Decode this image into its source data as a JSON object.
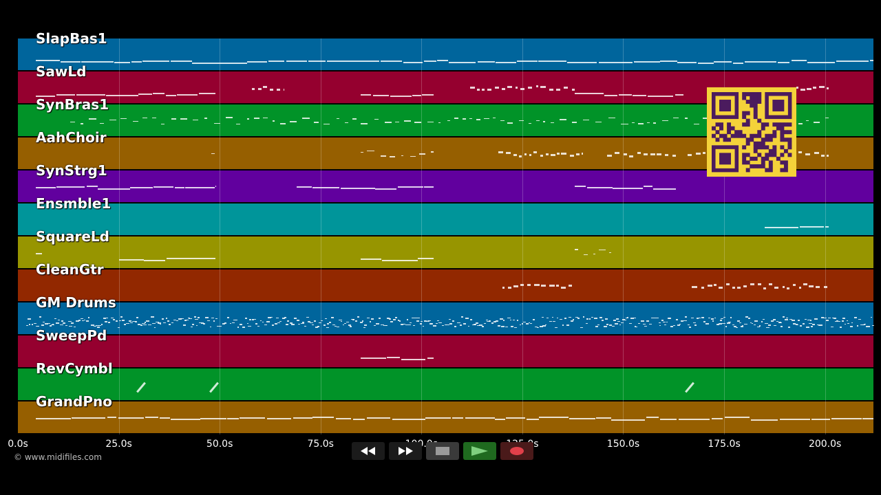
{
  "tracks": [
    {
      "name": "SlapBas1",
      "color": "#00659c"
    },
    {
      "name": "SawLd",
      "color": "#95002f"
    },
    {
      "name": "SynBras1",
      "color": "#019328"
    },
    {
      "name": "AahChoir",
      "color": "#965f00"
    },
    {
      "name": "SynStrg1",
      "color": "#61009e"
    },
    {
      "name": "Ensmble1",
      "color": "#00959a"
    },
    {
      "name": "SquareLd",
      "color": "#979500"
    },
    {
      "name": "CleanGtr",
      "color": "#922800"
    },
    {
      "name": "GM Drums",
      "color": "#00659c"
    },
    {
      "name": "SweepPd",
      "color": "#95002f"
    },
    {
      "name": "RevCymbl",
      "color": "#019328"
    },
    {
      "name": "GrandPno",
      "color": "#965f00"
    }
  ],
  "axis": {
    "ticks": [
      "0.0s",
      "25.0s",
      "50.0s",
      "75.0s",
      "100.0s",
      "125.0s",
      "150.0s",
      "175.0s",
      "200.0s"
    ],
    "range_seconds": [
      0,
      212
    ]
  },
  "copyright": "© www.midifiles.com",
  "transport": {
    "rewind_icon": "rewind-icon",
    "fast_forward_icon": "fast-forward-icon",
    "stop_icon": "stop-icon",
    "play_icon": "play-icon",
    "record_icon": "record-icon"
  },
  "note_segments": [
    {
      "track": 0,
      "start": 4.5,
      "end": 212,
      "density": "continuous"
    },
    {
      "track": 1,
      "start": 4.5,
      "end": 49,
      "density": "continuous"
    },
    {
      "track": 1,
      "start": 58,
      "end": 66,
      "density": "burst"
    },
    {
      "track": 1,
      "start": 85,
      "end": 103,
      "density": "continuous"
    },
    {
      "track": 1,
      "start": 112,
      "end": 138,
      "density": "burst"
    },
    {
      "track": 1,
      "start": 138,
      "end": 165,
      "density": "continuous"
    },
    {
      "track": 1,
      "start": 190,
      "end": 201,
      "density": "burst"
    },
    {
      "track": 2,
      "start": 13,
      "end": 201,
      "density": "sparse"
    },
    {
      "track": 3,
      "start": 48,
      "end": 49,
      "density": "sparse"
    },
    {
      "track": 3,
      "start": 85,
      "end": 103,
      "density": "sparse"
    },
    {
      "track": 3,
      "start": 119,
      "end": 140,
      "density": "burst"
    },
    {
      "track": 3,
      "start": 146,
      "end": 163,
      "density": "burst"
    },
    {
      "track": 3,
      "start": 166,
      "end": 201,
      "density": "burst"
    },
    {
      "track": 4,
      "start": 4.5,
      "end": 49,
      "density": "continuous"
    },
    {
      "track": 4,
      "start": 69,
      "end": 103,
      "density": "continuous"
    },
    {
      "track": 4,
      "start": 138,
      "end": 163,
      "density": "continuous"
    },
    {
      "track": 5,
      "start": 185,
      "end": 201,
      "density": "continuous"
    },
    {
      "track": 6,
      "start": 4.5,
      "end": 6,
      "density": "sparse"
    },
    {
      "track": 6,
      "start": 25,
      "end": 49,
      "density": "continuous"
    },
    {
      "track": 6,
      "start": 85,
      "end": 103,
      "density": "continuous"
    },
    {
      "track": 6,
      "start": 138,
      "end": 147,
      "density": "sparse"
    },
    {
      "track": 7,
      "start": 120,
      "end": 138,
      "density": "burst"
    },
    {
      "track": 7,
      "start": 167,
      "end": 201,
      "density": "burst"
    },
    {
      "track": 8,
      "start": 2,
      "end": 212,
      "density": "dense"
    },
    {
      "track": 9,
      "start": 85,
      "end": 103,
      "density": "continuous"
    },
    {
      "track": 10,
      "start": 29,
      "end": 31,
      "density": "diagonal"
    },
    {
      "track": 10,
      "start": 47,
      "end": 49,
      "density": "diagonal"
    },
    {
      "track": 10,
      "start": 165,
      "end": 167,
      "density": "diagonal"
    },
    {
      "track": 11,
      "start": 4.5,
      "end": 212,
      "density": "continuous"
    }
  ]
}
